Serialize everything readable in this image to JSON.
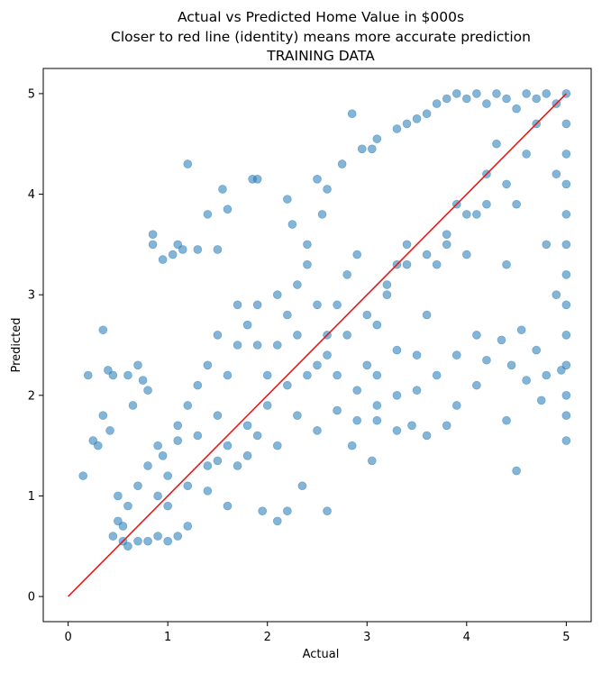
{
  "chart_data": {
    "type": "scatter",
    "title": "Actual vs Predicted Home Value in $000s",
    "subtitle": "Closer to red line (identity) means more accurate prediction",
    "subtitle2": "TRAINING DATA",
    "xlabel": "Actual",
    "ylabel": "Predicted",
    "xlim": [
      -0.25,
      5.25
    ],
    "ylim": [
      -0.25,
      5.25
    ],
    "x_ticks": [
      "0",
      "1",
      "2",
      "3",
      "4",
      "5"
    ],
    "y_ticks": [
      "0",
      "1",
      "2",
      "3",
      "4",
      "5"
    ],
    "grid": false,
    "legend": "none",
    "point_color": "#1f77b4",
    "point_alpha": 0.55,
    "line_color": "#e41a1c",
    "identity_line": {
      "x": [
        0,
        5
      ],
      "y": [
        0,
        5
      ]
    },
    "series": [
      {
        "points": [
          [
            0.15,
            1.2
          ],
          [
            0.2,
            2.2
          ],
          [
            0.25,
            1.55
          ],
          [
            0.3,
            1.5
          ],
          [
            0.35,
            2.65
          ],
          [
            0.4,
            2.25
          ],
          [
            0.45,
            2.2
          ],
          [
            0.35,
            1.8
          ],
          [
            0.42,
            1.65
          ],
          [
            0.45,
            0.6
          ],
          [
            0.5,
            1.0
          ],
          [
            0.55,
            0.7
          ],
          [
            0.6,
            2.2
          ],
          [
            0.65,
            1.9
          ],
          [
            0.7,
            2.3
          ],
          [
            0.75,
            2.15
          ],
          [
            0.8,
            2.05
          ],
          [
            0.85,
            3.6
          ],
          [
            0.85,
            3.5
          ],
          [
            0.95,
            3.35
          ],
          [
            1.05,
            3.4
          ],
          [
            1.1,
            3.5
          ],
          [
            1.15,
            3.45
          ],
          [
            1.2,
            4.3
          ],
          [
            1.3,
            3.45
          ],
          [
            1.4,
            3.8
          ],
          [
            1.5,
            3.45
          ],
          [
            1.55,
            4.05
          ],
          [
            1.6,
            3.85
          ],
          [
            1.85,
            4.15
          ],
          [
            1.9,
            4.15
          ],
          [
            2.2,
            3.95
          ],
          [
            2.25,
            3.7
          ],
          [
            2.4,
            3.5
          ],
          [
            2.5,
            4.15
          ],
          [
            2.55,
            3.8
          ],
          [
            2.6,
            4.05
          ],
          [
            2.75,
            4.3
          ],
          [
            2.85,
            4.8
          ],
          [
            2.95,
            4.45
          ],
          [
            3.05,
            4.45
          ],
          [
            3.1,
            4.55
          ],
          [
            3.3,
            4.65
          ],
          [
            3.4,
            4.7
          ],
          [
            3.5,
            4.75
          ],
          [
            3.6,
            4.8
          ],
          [
            3.7,
            4.9
          ],
          [
            3.8,
            4.95
          ],
          [
            3.9,
            5.0
          ],
          [
            4.0,
            4.95
          ],
          [
            4.1,
            5.0
          ],
          [
            4.2,
            4.9
          ],
          [
            4.3,
            5.0
          ],
          [
            4.4,
            4.95
          ],
          [
            4.5,
            4.85
          ],
          [
            4.6,
            5.0
          ],
          [
            4.7,
            4.95
          ],
          [
            4.8,
            5.0
          ],
          [
            4.9,
            4.9
          ],
          [
            5.0,
            5.0
          ],
          [
            5.0,
            4.7
          ],
          [
            5.0,
            4.4
          ],
          [
            5.0,
            4.1
          ],
          [
            5.0,
            3.8
          ],
          [
            5.0,
            3.5
          ],
          [
            5.0,
            3.2
          ],
          [
            5.0,
            2.9
          ],
          [
            5.0,
            2.6
          ],
          [
            5.0,
            2.3
          ],
          [
            5.0,
            2.0
          ],
          [
            5.0,
            1.8
          ],
          [
            5.0,
            1.55
          ],
          [
            4.95,
            2.25
          ],
          [
            4.9,
            3.0
          ],
          [
            4.8,
            2.2
          ],
          [
            4.75,
            1.95
          ],
          [
            4.7,
            2.45
          ],
          [
            4.6,
            2.15
          ],
          [
            4.55,
            2.65
          ],
          [
            4.5,
            1.25
          ],
          [
            4.45,
            2.3
          ],
          [
            4.4,
            1.75
          ],
          [
            4.35,
            2.55
          ],
          [
            4.2,
            2.35
          ],
          [
            4.1,
            2.1
          ],
          [
            3.9,
            1.9
          ],
          [
            3.8,
            1.7
          ],
          [
            3.6,
            1.6
          ],
          [
            3.45,
            1.7
          ],
          [
            3.3,
            1.65
          ],
          [
            3.1,
            1.75
          ],
          [
            3.05,
            1.35
          ],
          [
            2.85,
            1.5
          ],
          [
            2.6,
            0.85
          ],
          [
            2.35,
            1.1
          ],
          [
            2.2,
            0.85
          ],
          [
            2.1,
            0.75
          ],
          [
            1.95,
            0.85
          ],
          [
            1.8,
            1.4
          ],
          [
            1.6,
            0.9
          ],
          [
            1.4,
            1.05
          ],
          [
            1.2,
            0.7
          ],
          [
            1.1,
            0.6
          ],
          [
            1.0,
            0.55
          ],
          [
            0.9,
            0.6
          ],
          [
            0.8,
            0.55
          ],
          [
            0.7,
            0.55
          ],
          [
            0.6,
            0.5
          ],
          [
            0.55,
            0.55
          ],
          [
            0.5,
            0.75
          ],
          [
            0.6,
            0.9
          ],
          [
            0.7,
            1.1
          ],
          [
            0.8,
            1.3
          ],
          [
            0.9,
            1.5
          ],
          [
            1.0,
            1.2
          ],
          [
            1.1,
            1.7
          ],
          [
            1.2,
            1.9
          ],
          [
            1.3,
            2.1
          ],
          [
            1.4,
            2.3
          ],
          [
            1.5,
            1.8
          ],
          [
            1.6,
            2.2
          ],
          [
            1.7,
            2.5
          ],
          [
            1.8,
            2.7
          ],
          [
            1.9,
            2.9
          ],
          [
            2.0,
            2.2
          ],
          [
            2.1,
            2.5
          ],
          [
            2.2,
            2.8
          ],
          [
            2.3,
            3.1
          ],
          [
            2.4,
            3.3
          ],
          [
            2.5,
            2.3
          ],
          [
            2.6,
            2.6
          ],
          [
            2.7,
            2.9
          ],
          [
            2.8,
            3.2
          ],
          [
            2.9,
            3.4
          ],
          [
            3.0,
            2.3
          ],
          [
            3.1,
            2.7
          ],
          [
            3.2,
            3.0
          ],
          [
            3.3,
            3.3
          ],
          [
            3.4,
            3.5
          ],
          [
            3.5,
            2.4
          ],
          [
            3.6,
            2.8
          ],
          [
            3.7,
            3.3
          ],
          [
            3.8,
            3.6
          ],
          [
            3.9,
            3.9
          ],
          [
            4.0,
            3.4
          ],
          [
            4.1,
            3.8
          ],
          [
            4.2,
            4.2
          ],
          [
            4.3,
            4.5
          ],
          [
            4.4,
            3.3
          ],
          [
            4.5,
            3.9
          ],
          [
            4.6,
            4.4
          ],
          [
            4.7,
            4.7
          ],
          [
            4.8,
            3.5
          ],
          [
            4.9,
            4.2
          ],
          [
            1.0,
            0.9
          ],
          [
            1.2,
            1.1
          ],
          [
            1.4,
            1.3
          ],
          [
            1.6,
            1.5
          ],
          [
            1.8,
            1.7
          ],
          [
            2.0,
            1.9
          ],
          [
            2.2,
            2.1
          ],
          [
            2.4,
            2.2
          ],
          [
            2.6,
            2.4
          ],
          [
            2.8,
            2.6
          ],
          [
            3.0,
            2.8
          ],
          [
            3.2,
            3.1
          ],
          [
            3.4,
            3.3
          ],
          [
            3.6,
            3.4
          ],
          [
            3.8,
            3.5
          ],
          [
            4.0,
            3.8
          ],
          [
            4.2,
            3.9
          ],
          [
            4.4,
            4.1
          ],
          [
            1.5,
            2.6
          ],
          [
            1.7,
            2.9
          ],
          [
            1.9,
            2.5
          ],
          [
            2.1,
            3.0
          ],
          [
            2.3,
            2.6
          ],
          [
            2.5,
            2.9
          ],
          [
            2.7,
            2.2
          ],
          [
            2.9,
            2.05
          ],
          [
            3.1,
            2.2
          ],
          [
            3.3,
            2.45
          ],
          [
            3.5,
            2.05
          ],
          [
            3.7,
            2.2
          ],
          [
            3.9,
            2.4
          ],
          [
            4.1,
            2.6
          ],
          [
            1.1,
            1.55
          ],
          [
            1.3,
            1.6
          ],
          [
            1.5,
            1.35
          ],
          [
            1.7,
            1.3
          ],
          [
            1.9,
            1.6
          ],
          [
            2.1,
            1.5
          ],
          [
            2.3,
            1.8
          ],
          [
            2.5,
            1.65
          ],
          [
            2.7,
            1.85
          ],
          [
            2.9,
            1.75
          ],
          [
            3.1,
            1.9
          ],
          [
            3.3,
            2.0
          ],
          [
            0.9,
            1.0
          ],
          [
            0.95,
            1.4
          ]
        ]
      }
    ]
  }
}
